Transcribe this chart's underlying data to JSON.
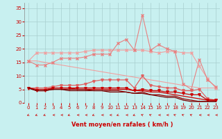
{
  "x": [
    0,
    1,
    2,
    3,
    4,
    5,
    6,
    7,
    8,
    9,
    10,
    11,
    12,
    13,
    14,
    15,
    16,
    17,
    18,
    19,
    20,
    21,
    22,
    23
  ],
  "series": [
    {
      "name": "line1_lightest_flat",
      "color": "#f0a0a0",
      "lw": 0.8,
      "marker": null,
      "ms": 0,
      "y": [
        15.5,
        15.5,
        15.0,
        14.5,
        14.0,
        13.5,
        13.0,
        12.5,
        12.0,
        11.5,
        11.0,
        10.5,
        10.0,
        9.5,
        9.0,
        8.5,
        8.0,
        7.5,
        7.0,
        6.5,
        6.0,
        5.5,
        5.5,
        5.5
      ]
    },
    {
      "name": "line2_lightest",
      "color": "#f0a0a0",
      "lw": 0.8,
      "marker": "x",
      "ms": 2.5,
      "y": [
        15.5,
        18.5,
        18.5,
        18.5,
        18.5,
        18.5,
        18.5,
        19.0,
        19.5,
        19.5,
        19.5,
        19.5,
        19.5,
        19.5,
        19.5,
        19.0,
        18.5,
        19.0,
        19.0,
        18.5,
        18.5,
        13.5,
        9.0,
        5.5
      ]
    },
    {
      "name": "line3_light",
      "color": "#e88080",
      "lw": 0.8,
      "marker": "x",
      "ms": 2.5,
      "y": [
        15.5,
        14.0,
        14.0,
        15.0,
        16.5,
        16.5,
        16.5,
        17.0,
        18.0,
        18.0,
        18.0,
        22.0,
        23.5,
        19.5,
        32.5,
        19.5,
        21.5,
        20.0,
        19.0,
        7.0,
        5.0,
        16.0,
        8.5,
        6.0
      ]
    },
    {
      "name": "line4_medium",
      "color": "#e06060",
      "lw": 0.9,
      "marker": "v",
      "ms": 2.5,
      "y": [
        5.5,
        5.5,
        5.5,
        6.0,
        6.5,
        6.5,
        6.5,
        7.0,
        8.0,
        8.5,
        8.5,
        8.5,
        8.5,
        5.5,
        10.0,
        6.5,
        6.0,
        5.5,
        5.5,
        4.5,
        4.5,
        5.0,
        1.5,
        1.0
      ]
    },
    {
      "name": "line5_dark_marker",
      "color": "#cc0000",
      "lw": 0.9,
      "marker": "v",
      "ms": 2.5,
      "y": [
        5.5,
        4.5,
        4.5,
        5.5,
        5.5,
        5.5,
        5.5,
        5.5,
        5.5,
        5.5,
        5.5,
        5.5,
        5.5,
        4.5,
        5.0,
        4.5,
        4.5,
        4.0,
        4.0,
        3.5,
        3.0,
        3.0,
        1.0,
        1.0
      ]
    },
    {
      "name": "line6_dark",
      "color": "#cc0000",
      "lw": 0.9,
      "marker": null,
      "ms": 0,
      "y": [
        5.5,
        5.0,
        5.0,
        5.5,
        5.5,
        5.5,
        5.0,
        5.0,
        5.0,
        5.0,
        5.0,
        5.0,
        5.0,
        4.5,
        4.5,
        4.0,
        4.0,
        3.5,
        3.0,
        2.5,
        2.0,
        1.5,
        1.0,
        1.0
      ]
    },
    {
      "name": "line7_darkest",
      "color": "#990000",
      "lw": 0.9,
      "marker": null,
      "ms": 0,
      "y": [
        5.5,
        4.5,
        4.5,
        5.0,
        5.0,
        5.0,
        5.0,
        5.0,
        4.5,
        4.5,
        4.5,
        4.5,
        4.0,
        3.5,
        4.0,
        3.0,
        3.0,
        2.5,
        2.5,
        1.5,
        1.0,
        0.5,
        0.5,
        0.5
      ]
    },
    {
      "name": "line8_darkest2",
      "color": "#770000",
      "lw": 0.9,
      "marker": null,
      "ms": 0,
      "y": [
        5.5,
        4.5,
        4.5,
        5.0,
        5.0,
        4.5,
        4.5,
        4.5,
        4.5,
        4.5,
        4.0,
        4.0,
        4.0,
        3.5,
        3.5,
        3.0,
        2.5,
        2.0,
        2.0,
        1.0,
        0.5,
        0.5,
        0.5,
        0.5
      ]
    }
  ],
  "ylim": [
    0,
    37
  ],
  "yticks": [
    0,
    5,
    10,
    15,
    20,
    25,
    30,
    35
  ],
  "xticks": [
    0,
    1,
    2,
    3,
    4,
    5,
    6,
    7,
    8,
    9,
    10,
    11,
    12,
    13,
    14,
    15,
    16,
    17,
    18,
    19,
    20,
    21,
    22,
    23
  ],
  "xlabel": "Vent moyen/en rafales ( km/h )",
  "bg_color": "#c8f0f0",
  "grid_color": "#a8cece",
  "tick_color": "#cc0000",
  "label_color": "#cc0000",
  "arrow_angles": [
    225,
    225,
    225,
    270,
    270,
    225,
    270,
    270,
    225,
    270,
    270,
    225,
    270,
    225,
    315,
    315,
    270,
    270,
    315,
    315,
    315,
    270,
    270,
    270
  ]
}
